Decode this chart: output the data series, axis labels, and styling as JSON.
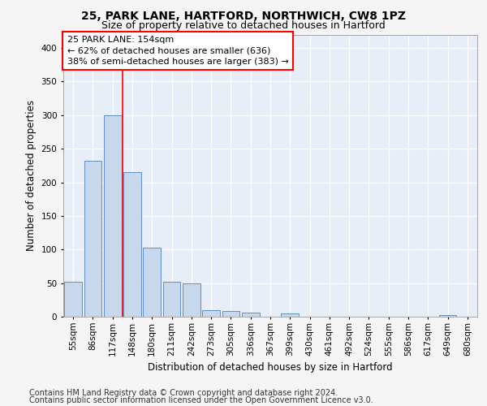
{
  "title_line1": "25, PARK LANE, HARTFORD, NORTHWICH, CW8 1PZ",
  "title_line2": "Size of property relative to detached houses in Hartford",
  "xlabel": "Distribution of detached houses by size in Hartford",
  "ylabel": "Number of detached properties",
  "bar_color": "#c8d8ec",
  "bar_edge_color": "#6090c0",
  "background_color": "#e8eef8",
  "grid_color": "#ffffff",
  "categories": [
    "55sqm",
    "86sqm",
    "117sqm",
    "148sqm",
    "180sqm",
    "211sqm",
    "242sqm",
    "273sqm",
    "305sqm",
    "336sqm",
    "367sqm",
    "399sqm",
    "430sqm",
    "461sqm",
    "492sqm",
    "524sqm",
    "555sqm",
    "586sqm",
    "617sqm",
    "649sqm",
    "680sqm"
  ],
  "values": [
    52,
    232,
    300,
    215,
    103,
    52,
    49,
    10,
    9,
    6,
    0,
    5,
    0,
    0,
    0,
    0,
    0,
    0,
    0,
    3,
    0
  ],
  "ylim": [
    0,
    420
  ],
  "yticks": [
    0,
    50,
    100,
    150,
    200,
    250,
    300,
    350,
    400
  ],
  "red_line_x": 2.5,
  "annotation_text_line1": "25 PARK LANE: 154sqm",
  "annotation_text_line2": "← 62% of detached houses are smaller (636)",
  "annotation_text_line3": "38% of semi-detached houses are larger (383) →",
  "footer_line1": "Contains HM Land Registry data © Crown copyright and database right 2024.",
  "footer_line2": "Contains public sector information licensed under the Open Government Licence v3.0.",
  "title_fontsize": 10,
  "subtitle_fontsize": 9,
  "axis_label_fontsize": 8.5,
  "tick_fontsize": 7.5,
  "annotation_fontsize": 8,
  "footer_fontsize": 7
}
